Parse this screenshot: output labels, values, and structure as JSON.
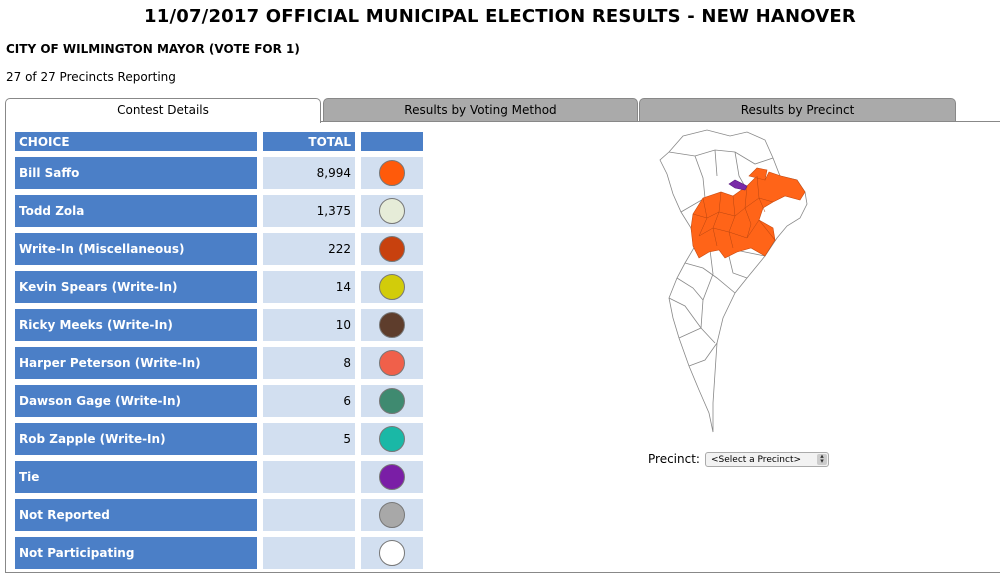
{
  "page": {
    "title": "11/07/2017 OFFICIAL MUNICIPAL ELECTION RESULTS - NEW HANOVER",
    "contest": "CITY OF WILMINGTON MAYOR (VOTE FOR 1)",
    "reporting": "27 of 27 Precincts Reporting"
  },
  "tabs": [
    {
      "label": "Contest Details",
      "active": true
    },
    {
      "label": "Results by Voting Method",
      "active": false
    },
    {
      "label": "Results by Precinct",
      "active": false
    }
  ],
  "table": {
    "headers": {
      "choice": "CHOICE",
      "total": "TOTAL",
      "color": ""
    },
    "rows": [
      {
        "choice": "Bill Saffo",
        "total": "8,994",
        "color": "#ff5a0a"
      },
      {
        "choice": "Todd Zola",
        "total": "1,375",
        "color": "#e6ecd8"
      },
      {
        "choice": "Write-In (Miscellaneous)",
        "total": "222",
        "color": "#c8410e"
      },
      {
        "choice": "Kevin Spears (Write-In)",
        "total": "14",
        "color": "#d2cc0a"
      },
      {
        "choice": "Ricky Meeks (Write-In)",
        "total": "10",
        "color": "#5e3d2c"
      },
      {
        "choice": "Harper Peterson (Write-In)",
        "total": "8",
        "color": "#f0604a"
      },
      {
        "choice": "Dawson Gage (Write-In)",
        "total": "6",
        "color": "#3f8a70"
      },
      {
        "choice": "Rob Zapple (Write-In)",
        "total": "5",
        "color": "#1ab8a6"
      },
      {
        "choice": "Tie",
        "total": "",
        "color": "#7a1ea6"
      },
      {
        "choice": "Not Reported",
        "total": "",
        "color": "#a8a8a8"
      },
      {
        "choice": "Not Participating",
        "total": "",
        "color": "#ffffff"
      }
    ]
  },
  "map": {
    "colors": {
      "winner": "#ff6418",
      "tie": "#7a2aa8",
      "outline": "#888888"
    }
  },
  "precinct": {
    "label": "Precinct:",
    "selected": "<Select a Precinct>"
  }
}
